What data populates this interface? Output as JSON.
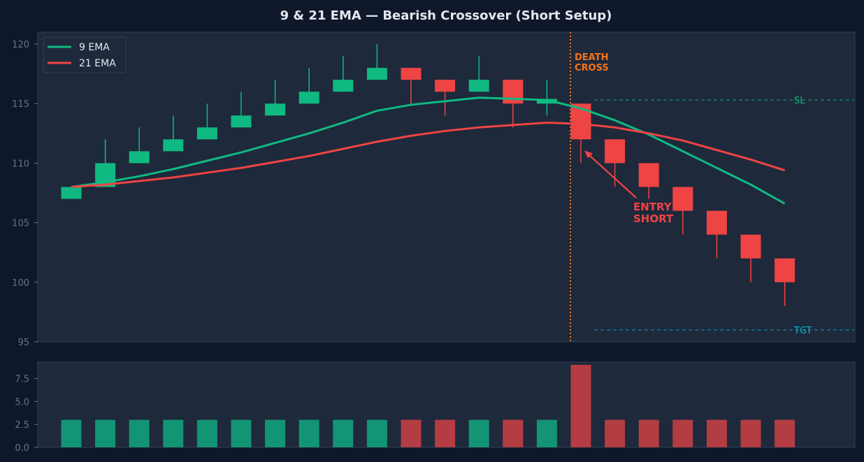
{
  "chart_data": [
    {
      "type": "candlestick",
      "title": "9 & 21 EMA — Bearish Crossover (Short Setup)",
      "xlabel": "",
      "ylabel": "",
      "ylim": [
        95,
        121
      ],
      "yticks": [
        95,
        100,
        105,
        110,
        115,
        120
      ],
      "grid": false,
      "legend": "top-left",
      "candles": [
        {
          "o": 107,
          "h": 108,
          "l": 107,
          "c": 108
        },
        {
          "o": 108,
          "h": 112,
          "l": 108,
          "c": 110
        },
        {
          "o": 110,
          "h": 113,
          "l": 110,
          "c": 111
        },
        {
          "o": 111,
          "h": 114,
          "l": 111,
          "c": 112
        },
        {
          "o": 112,
          "h": 115,
          "l": 112,
          "c": 113
        },
        {
          "o": 113,
          "h": 116,
          "l": 113,
          "c": 114
        },
        {
          "o": 114,
          "h": 117,
          "l": 114,
          "c": 115
        },
        {
          "o": 115,
          "h": 118,
          "l": 115,
          "c": 116
        },
        {
          "o": 116,
          "h": 119,
          "l": 116,
          "c": 117
        },
        {
          "o": 117,
          "h": 120,
          "l": 117,
          "c": 118
        },
        {
          "o": 118,
          "h": 118,
          "l": 115,
          "c": 117
        },
        {
          "o": 117,
          "h": 117,
          "l": 114,
          "c": 116
        },
        {
          "o": 116,
          "h": 119,
          "l": 116,
          "c": 117
        },
        {
          "o": 117,
          "h": 117,
          "l": 113,
          "c": 115
        },
        {
          "o": 115,
          "h": 117,
          "l": 114,
          "c": 115.4
        },
        {
          "o": 115,
          "h": 115,
          "l": 110,
          "c": 112
        },
        {
          "o": 112,
          "h": 112,
          "l": 108,
          "c": 110
        },
        {
          "o": 110,
          "h": 110,
          "l": 107,
          "c": 108
        },
        {
          "o": 108,
          "h": 108,
          "l": 104,
          "c": 106
        },
        {
          "o": 106,
          "h": 106,
          "l": 102,
          "c": 104
        },
        {
          "o": 104,
          "h": 104,
          "l": 100,
          "c": 102
        },
        {
          "o": 102,
          "h": 102,
          "l": 98,
          "c": 100
        }
      ],
      "series": [
        {
          "name": "9 EMA",
          "color": "#10b981",
          "values": [
            108,
            108.4,
            108.9,
            109.5,
            110.2,
            110.9,
            111.7,
            112.5,
            113.4,
            114.4,
            114.9,
            115.2,
            115.5,
            115.4,
            115.3,
            114.6,
            113.6,
            112.4,
            111.0,
            109.6,
            108.2,
            106.6
          ]
        },
        {
          "name": "21 EMA",
          "color": "#ef4444",
          "values": [
            108,
            108.2,
            108.5,
            108.8,
            109.2,
            109.6,
            110.1,
            110.6,
            111.2,
            111.8,
            112.3,
            112.7,
            113.0,
            113.2,
            113.4,
            113.3,
            113.0,
            112.5,
            111.9,
            111.1,
            110.3,
            109.4
          ]
        }
      ],
      "annotations": [
        {
          "text": [
            "DEATH",
            "CROSS"
          ],
          "at_index": 15,
          "color": "#f97316"
        },
        {
          "text": [
            "ENTRY",
            "SHORT"
          ],
          "at_index": 15,
          "value": 111,
          "color": "#ef4444"
        },
        {
          "text": "SL",
          "value": 115.3,
          "color": "#10b981"
        },
        {
          "text": "TGT",
          "value": 96,
          "color": "#06b6d4"
        }
      ]
    },
    {
      "type": "bar",
      "title": "",
      "ylim": [
        0,
        9.3
      ],
      "yticks": [
        "0.0",
        "2.5",
        "5.0",
        "7.5"
      ],
      "values": [
        3,
        3,
        3,
        3,
        3,
        3,
        3,
        3,
        3,
        3,
        3,
        3,
        3,
        3,
        3,
        9,
        3,
        3,
        3,
        3,
        3,
        3
      ],
      "colors_by": "candle_direction"
    }
  ],
  "colors": {
    "bull": "#10b981",
    "bear": "#ef4444",
    "bull_volume": "#139474",
    "bear_volume": "#b43c43",
    "panel": "#1e293b",
    "background": "#0f172a"
  }
}
